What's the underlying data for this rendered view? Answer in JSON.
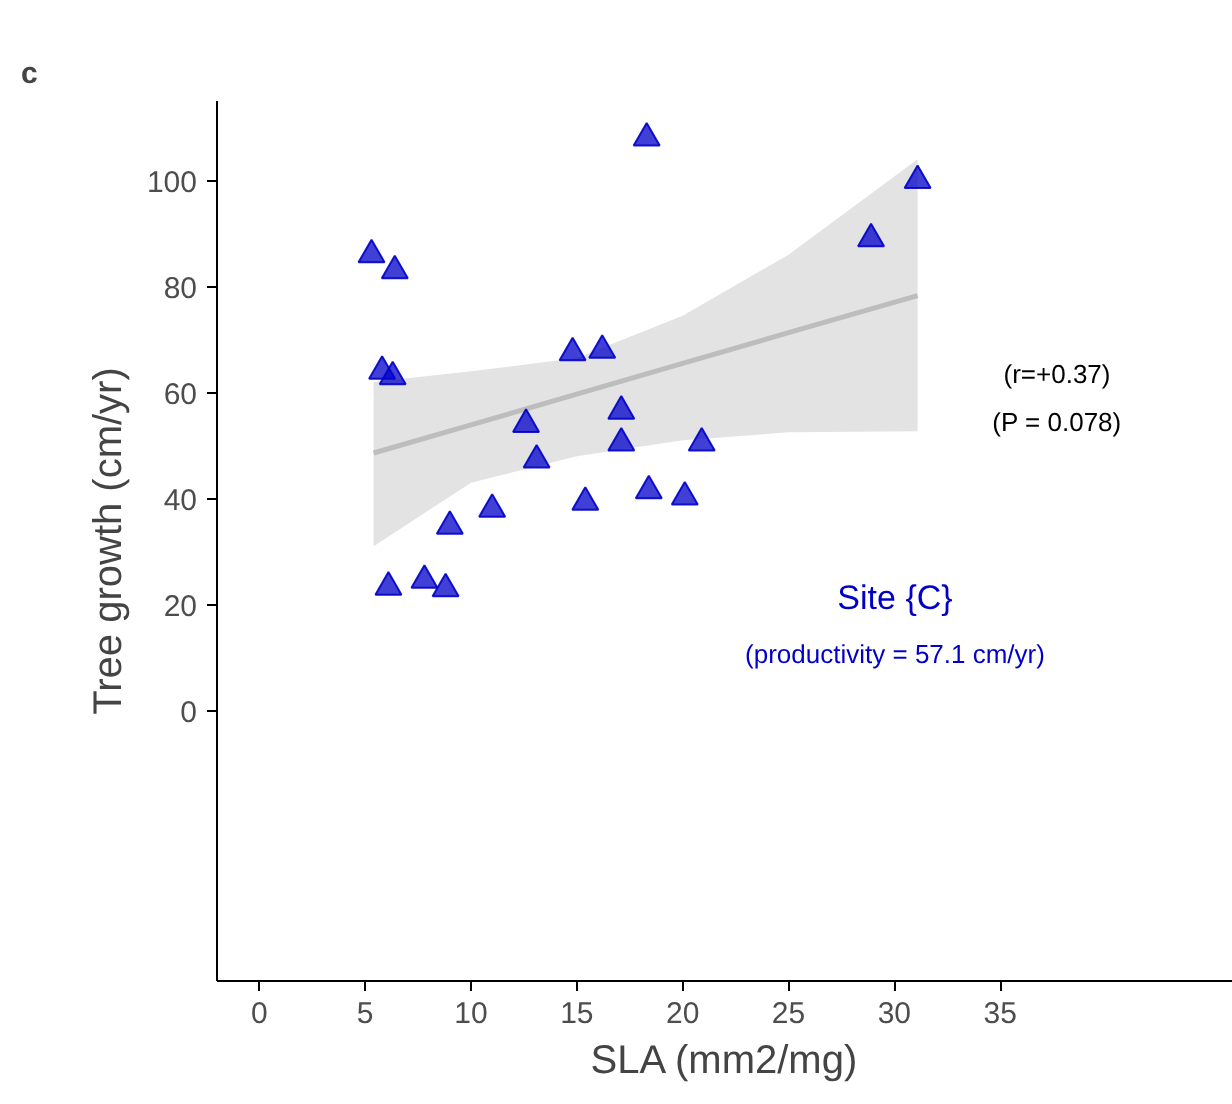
{
  "chart_data": {
    "type": "scatter",
    "title": "c",
    "xlabel": "SLA (mm2/mg)",
    "ylabel": "Tree growth (cm/yr)",
    "xlim": [
      -2,
      46
    ],
    "ylim": [
      -51,
      115
    ],
    "xticks": [
      0,
      5,
      10,
      15,
      20,
      25,
      30,
      35
    ],
    "yticks": [
      0,
      20,
      40,
      60,
      80,
      100
    ],
    "grid": false,
    "series": [
      {
        "marker": "triangle",
        "color": "#0000c8",
        "x": [
          5.3,
          6.4,
          5.8,
          6.3,
          14.8,
          16.2,
          18.3,
          31.1,
          28.9,
          12.6,
          17.1,
          17.1,
          20.9,
          13.1,
          18.4,
          20.1,
          15.4,
          11.0,
          9.0,
          6.1,
          7.8,
          8.8
        ],
        "values": [
          86,
          83,
          64,
          63,
          67.5,
          68,
          108,
          100,
          89,
          54,
          56.5,
          50.5,
          50.5,
          47.3,
          41.5,
          40.3,
          39.3,
          38,
          34.8,
          23.3,
          24.6,
          23
        ]
      },
      {
        "type": "line",
        "color": "#bdbdbd",
        "x": [
          5.4,
          10,
          15,
          20,
          25,
          31.1
        ],
        "values": [
          48.6,
          53.9,
          59.7,
          65.5,
          71.3,
          78.3
        ],
        "lower": [
          31,
          43,
          48,
          51,
          52.5,
          52.7
        ],
        "upper": [
          62,
          64,
          66.5,
          74.5,
          86,
          104
        ]
      }
    ],
    "annotations": [
      "(r=+0.37)",
      "(P = 0.078)",
      "Site {C}",
      "(productivity = 57.1 cm/yr)"
    ]
  }
}
